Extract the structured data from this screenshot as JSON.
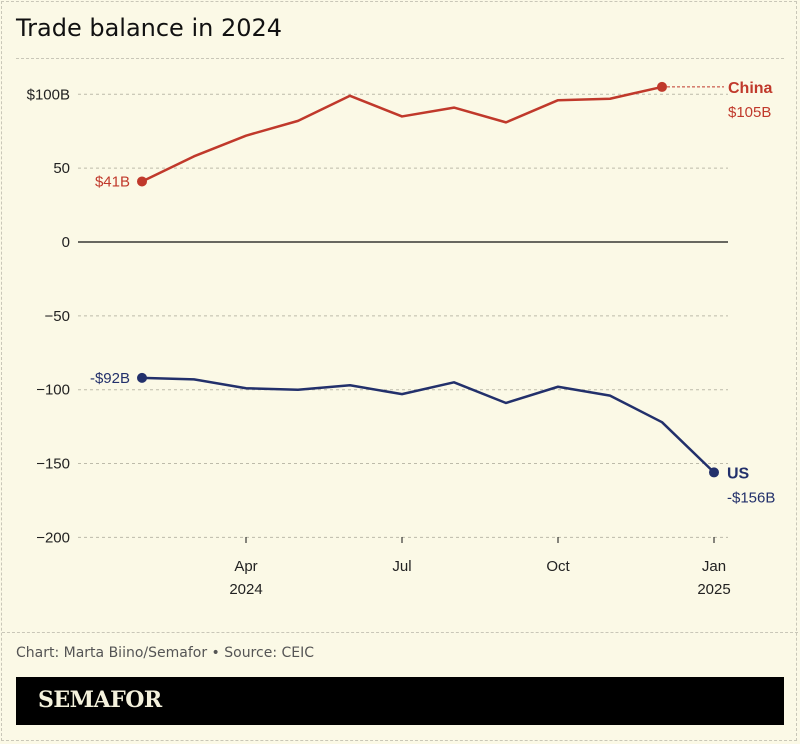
{
  "title": "Trade balance in 2024",
  "credit": "Chart: Marta Biino/Semafor • Source: CEIC",
  "brand": "SEMAFOR",
  "chart_data": {
    "type": "line",
    "ylim": [
      -200,
      100
    ],
    "yticks": [
      100,
      50,
      0,
      -50,
      -100,
      -150,
      -200
    ],
    "ytick_labels": [
      "$100B",
      "50",
      "0",
      "−50",
      "−100",
      "−150",
      "−200"
    ],
    "xticks": [
      {
        "x": "2024-04",
        "label": "Apr",
        "sub": "2024"
      },
      {
        "x": "2024-07",
        "label": "Jul",
        "sub": ""
      },
      {
        "x": "2024-10",
        "label": "Oct",
        "sub": ""
      },
      {
        "x": "2025-01",
        "label": "Jan",
        "sub": "2025"
      }
    ],
    "grid": true,
    "series": [
      {
        "name": "China",
        "color": "#c0392b",
        "start_label": "$41B",
        "end_label": "$105B",
        "x": [
          "2024-02",
          "2024-03",
          "2024-04",
          "2024-05",
          "2024-06",
          "2024-07",
          "2024-08",
          "2024-09",
          "2024-10",
          "2024-11",
          "2024-12"
        ],
        "values": [
          41,
          58,
          72,
          82,
          99,
          85,
          91,
          81,
          96,
          97,
          105
        ]
      },
      {
        "name": "US",
        "color": "#22306b",
        "start_label": "-$92B",
        "end_label": "-$156B",
        "x": [
          "2024-02",
          "2024-03",
          "2024-04",
          "2024-05",
          "2024-06",
          "2024-07",
          "2024-08",
          "2024-09",
          "2024-10",
          "2024-11",
          "2024-12",
          "2025-01"
        ],
        "values": [
          -92,
          -93,
          -99,
          -100,
          -97,
          -103,
          -95,
          -109,
          -98,
          -104,
          -122,
          -156
        ]
      }
    ]
  }
}
